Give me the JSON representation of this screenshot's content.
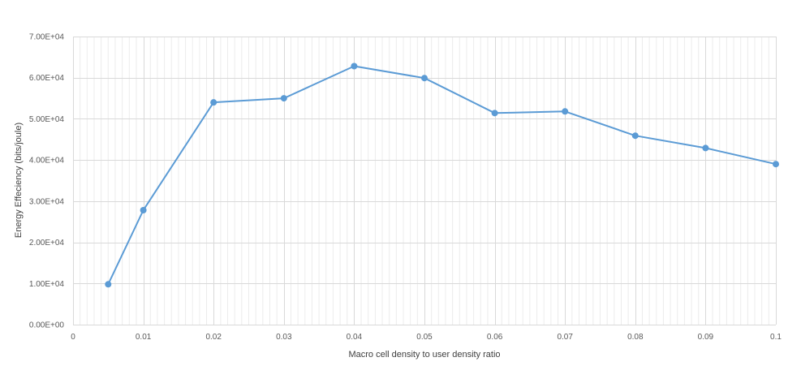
{
  "colors": {
    "series": "#5b9bd5",
    "major_grid": "#d9d9d9",
    "minor_grid": "#ececec",
    "text": "#595959"
  },
  "chart_data": {
    "type": "line",
    "title": "",
    "xlabel": "Macro cell density to user density ratio",
    "ylabel": "Energy Effeciency (bits/joule)",
    "xlim": [
      0,
      0.1
    ],
    "ylim": [
      0,
      70000
    ],
    "x_ticks": [
      0,
      0.01,
      0.02,
      0.03,
      0.04,
      0.05,
      0.06,
      0.07,
      0.08,
      0.09,
      0.1
    ],
    "x_tick_labels": [
      "0",
      "0.01",
      "0.02",
      "0.03",
      "0.04",
      "0.05",
      "0.06",
      "0.07",
      "0.08",
      "0.09",
      "0.1"
    ],
    "y_ticks": [
      0,
      10000,
      20000,
      30000,
      40000,
      50000,
      60000,
      70000
    ],
    "y_tick_labels": [
      "0.00E+00",
      "1.00E+04",
      "2.00E+04",
      "3.00E+04",
      "4.00E+04",
      "5.00E+04",
      "6.00E+04",
      "7.00E+04"
    ],
    "x_minor_step": 0.001,
    "grid": true,
    "legend": "none",
    "series": [
      {
        "x": [
          0.005,
          0.01,
          0.02,
          0.03,
          0.04,
          0.05,
          0.06,
          0.07,
          0.08,
          0.09,
          0.1
        ],
        "values": [
          9800,
          27800,
          54000,
          55000,
          62800,
          59900,
          51400,
          51800,
          45900,
          42900,
          39000
        ]
      }
    ]
  }
}
